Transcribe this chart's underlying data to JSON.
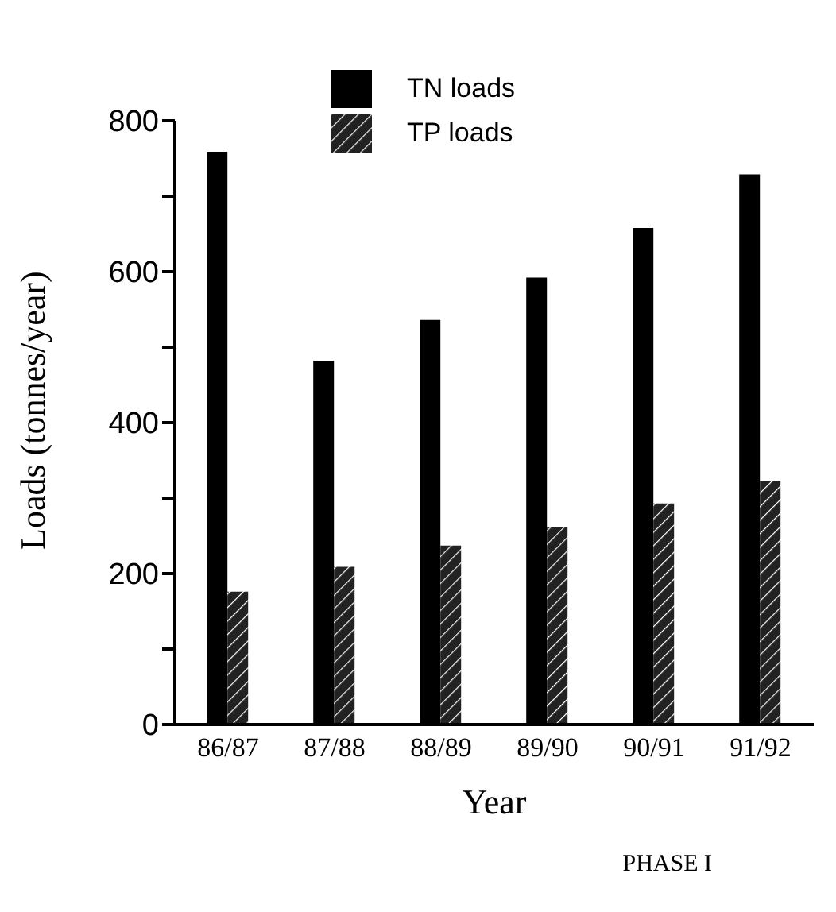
{
  "chart_data": {
    "type": "bar",
    "xlabel": "Year",
    "ylabel": "Loads (tonnes/year)",
    "categories": [
      "86/87",
      "87/88",
      "88/89",
      "89/90",
      "90/91",
      "91/92"
    ],
    "series": [
      {
        "name": "TN loads",
        "color": "#000000",
        "values": [
          759,
          482,
          536,
          592,
          658,
          729
        ]
      },
      {
        "name": "TP loads",
        "color": "#222222",
        "values": [
          176,
          209,
          237,
          261,
          293,
          322
        ]
      }
    ],
    "ylim": [
      0,
      800
    ],
    "yticks": [
      0,
      {
        "value": 100,
        "label": null
      },
      200,
      {
        "value": 300,
        "label": null
      },
      400,
      {
        "value": 500,
        "label": null
      },
      600,
      {
        "value": 700,
        "label": null
      },
      800
    ],
    "legend": "top",
    "grid": false,
    "annotations": [
      "PHASE I"
    ]
  }
}
